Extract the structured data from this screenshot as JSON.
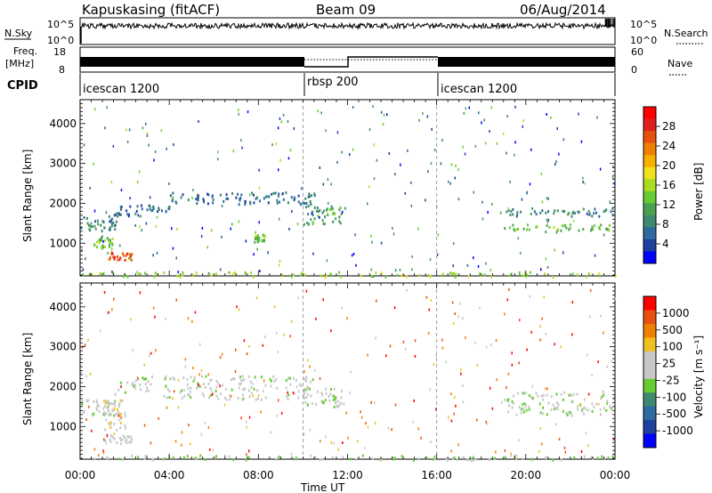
{
  "header": {
    "title": "Kapuskasing (fitACF)",
    "beam": "Beam 09",
    "date": "06/Aug/2014"
  },
  "nsky_panel": {
    "left_label": "N.Sky",
    "left_ticks": [
      "10^5",
      "10^0"
    ],
    "right_ticks": [
      "10^5",
      "10^0"
    ],
    "legend_label": "N.Search"
  },
  "freq_panel": {
    "left_label_top": "Freq.",
    "left_label_unit": "[MHz]",
    "left_ticks": [
      "18",
      "8"
    ],
    "right_ticks": [
      "60",
      "0"
    ],
    "legend_label": "Nave"
  },
  "cpid_panel": {
    "label": "CPID",
    "segments": [
      {
        "name": "icescan 1200",
        "start": 0,
        "end": 10
      },
      {
        "name": "rbsp 200",
        "start": 10,
        "end": 16
      },
      {
        "name": "icescan 1200",
        "start": 16,
        "end": 24
      }
    ]
  },
  "time_axis": {
    "label": "Time UT",
    "ticks": [
      "00:00",
      "04:00",
      "08:00",
      "12:00",
      "16:00",
      "20:00",
      "00:00"
    ]
  },
  "power_colorbar": {
    "label": "Power [dB]",
    "ticks": [
      "4",
      "8",
      "12",
      "16",
      "20",
      "24",
      "28"
    ],
    "colors": [
      "#0000ff",
      "#1e3f9e",
      "#2e6aa0",
      "#3d8a70",
      "#4aa050",
      "#66cc33",
      "#aadd22",
      "#f0e020",
      "#f5b000",
      "#f08000",
      "#e85010",
      "#e02020",
      "#ff0000"
    ]
  },
  "velocity_colorbar": {
    "label": "Velocity [m s⁻¹]",
    "ticks": [
      "1000",
      "500",
      "100",
      "25",
      "-25",
      "-100",
      "-500",
      "-1000"
    ],
    "colors": [
      "#0000ff",
      "#1e3f9e",
      "#2e6aa0",
      "#3d8a70",
      "#66cc33",
      "#c8c8c8",
      "#c8c8c8",
      "#f0c020",
      "#f08000",
      "#e85010",
      "#ff0000"
    ]
  },
  "chart_data": [
    {
      "type": "heatmap",
      "panel": "power",
      "xlabel": "Time UT",
      "ylabel": "Slant Range [km]",
      "xlim": [
        0,
        24
      ],
      "ylim": [
        180,
        4600
      ],
      "yticks": [
        1000,
        2000,
        3000,
        4000
      ],
      "colorbar_label": "Power [dB]",
      "colorbar_range": [
        0,
        30
      ],
      "mode_boundaries_hours": [
        10,
        16
      ],
      "scatter_regions": [
        {
          "t": [
            0.0,
            1.6
          ],
          "range": [
            1300,
            1700
          ],
          "value": 8
        },
        {
          "t": [
            0.6,
            1.6
          ],
          "range": [
            900,
            1200
          ],
          "value": 12
        },
        {
          "t": [
            1.0,
            2.3
          ],
          "range": [
            600,
            800
          ],
          "value": 24
        },
        {
          "t": [
            1.5,
            4.0
          ],
          "range": [
            1700,
            2000
          ],
          "value": 6
        },
        {
          "t": [
            4.0,
            8.0
          ],
          "range": [
            2000,
            2300
          ],
          "value": 6
        },
        {
          "t": [
            8.0,
            10.5
          ],
          "range": [
            2000,
            2300
          ],
          "value": 6
        },
        {
          "t": [
            10.0,
            11.8
          ],
          "range": [
            1500,
            2000
          ],
          "value": 10
        },
        {
          "t": [
            7.8,
            8.3
          ],
          "range": [
            1050,
            1250
          ],
          "value": 12
        },
        {
          "t": [
            19.0,
            24.0
          ],
          "range": [
            1700,
            1900
          ],
          "value": 8
        },
        {
          "t": [
            19.0,
            24.0
          ],
          "range": [
            1300,
            1500
          ],
          "value": 12
        },
        {
          "t": [
            0.0,
            24.0
          ],
          "range": [
            180,
            300
          ],
          "value": 14
        }
      ]
    },
    {
      "type": "heatmap",
      "panel": "velocity",
      "xlabel": "Time UT",
      "ylabel": "Slant Range [km]",
      "xlim": [
        0,
        24
      ],
      "ylim": [
        180,
        4600
      ],
      "yticks": [
        1000,
        2000,
        3000,
        4000
      ],
      "colorbar_label": "Velocity [m s⁻¹]",
      "colorbar_range": [
        -1000,
        1000
      ],
      "mode_boundaries_hours": [
        10,
        16
      ],
      "scatter_regions": [
        {
          "t": [
            0.0,
            1.6
          ],
          "range": [
            1300,
            1700
          ],
          "value": 0
        },
        {
          "t": [
            1.0,
            2.0
          ],
          "range": [
            900,
            1700
          ],
          "value": -200
        },
        {
          "t": [
            1.0,
            2.3
          ],
          "range": [
            600,
            800
          ],
          "value": -100
        },
        {
          "t": [
            1.5,
            10.5
          ],
          "range": [
            1700,
            2300
          ],
          "value": 0
        },
        {
          "t": [
            10.0,
            11.8
          ],
          "range": [
            1500,
            2000
          ],
          "value": 0
        },
        {
          "t": [
            19.0,
            24.0
          ],
          "range": [
            1300,
            1900
          ],
          "value": 0
        },
        {
          "t": [
            0.0,
            24.0
          ],
          "range": [
            180,
            300
          ],
          "value": 50
        }
      ]
    }
  ]
}
